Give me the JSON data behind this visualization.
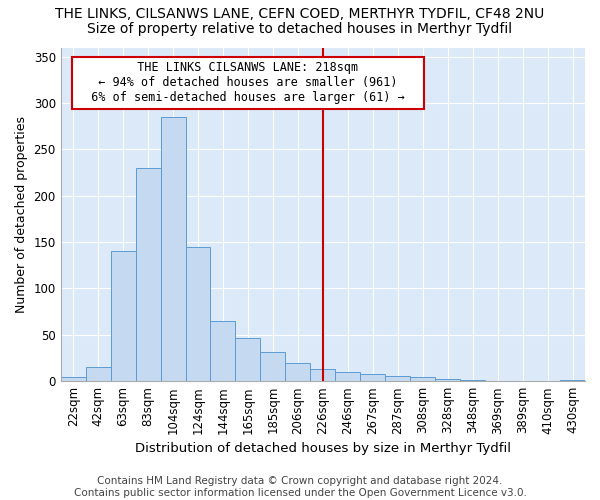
{
  "title1": "THE LINKS, CILSANWS LANE, CEFN COED, MERTHYR TYDFIL, CF48 2NU",
  "title2": "Size of property relative to detached houses in Merthyr Tydfil",
  "xlabel": "Distribution of detached houses by size in Merthyr Tydfil",
  "ylabel": "Number of detached properties",
  "bar_labels": [
    "22sqm",
    "42sqm",
    "63sqm",
    "83sqm",
    "104sqm",
    "124sqm",
    "144sqm",
    "165sqm",
    "185sqm",
    "206sqm",
    "226sqm",
    "246sqm",
    "267sqm",
    "287sqm",
    "308sqm",
    "328sqm",
    "348sqm",
    "369sqm",
    "389sqm",
    "410sqm",
    "430sqm"
  ],
  "bar_values": [
    5,
    15,
    140,
    230,
    285,
    145,
    65,
    47,
    31,
    20,
    13,
    10,
    8,
    6,
    4,
    2,
    1,
    0,
    0,
    0,
    1
  ],
  "bar_color": "#c5d9f0",
  "bar_edge_color": "#5b9bd5",
  "background_color": "#dce9f8",
  "grid_color": "#ffffff",
  "vline_x": 10,
  "vline_color": "#cc0000",
  "annotation_text": "  THE LINKS CILSANWS LANE: 218sqm  \n  ← 94% of detached houses are smaller (961)  \n  6% of semi-detached houses are larger (61) →  ",
  "annotation_box_color": "#ffffff",
  "annotation_box_edge": "#cc0000",
  "ylim": [
    0,
    360
  ],
  "yticks": [
    0,
    50,
    100,
    150,
    200,
    250,
    300,
    350
  ],
  "footer": "Contains HM Land Registry data © Crown copyright and database right 2024.\nContains public sector information licensed under the Open Government Licence v3.0.",
  "title1_fontsize": 10,
  "title2_fontsize": 10,
  "xlabel_fontsize": 9.5,
  "ylabel_fontsize": 9,
  "tick_fontsize": 8.5,
  "footer_fontsize": 7.5
}
